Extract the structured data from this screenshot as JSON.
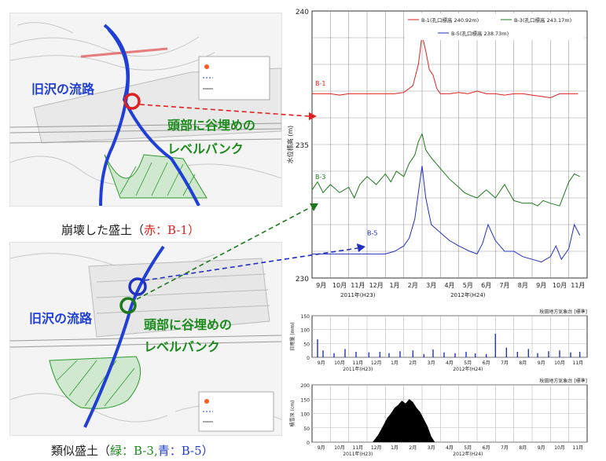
{
  "maps": {
    "top": {
      "annotation_channel": "旧沢の流路",
      "annotation_fill": "頭部に谷埋めの",
      "annotation_fill2": "レベルバンク",
      "caption_prefix": "崩壊した盛土（",
      "caption_color_word": "赤",
      "caption_suffix": "：B-1）"
    },
    "bottom": {
      "annotation_channel": "旧沢の流路",
      "annotation_fill": "頭部に谷埋めの",
      "annotation_fill2": "レベルバンク",
      "caption_prefix": "類似盛土（",
      "caption_green_word": "緑",
      "caption_mid": "：B-3,",
      "caption_blue_word": "青",
      "caption_suffix": "：B-5）"
    },
    "colors": {
      "channel": "#1f3fd6",
      "fill_hatch": "#2a9a2a",
      "b1": "#e02020",
      "b3": "#1c7a1c",
      "b5": "#2030c0"
    }
  },
  "chart_data": [
    {
      "type": "line",
      "ylabel": "水位標高 (m)",
      "ylim": [
        230,
        240
      ],
      "yticks": [
        "230",
        "235",
        "240"
      ],
      "x_months": [
        "9月",
        "10月",
        "11月",
        "12月",
        "1月",
        "2月",
        "3月",
        "4月",
        "5月",
        "6月",
        "7月",
        "8月",
        "9月",
        "10月",
        "11月"
      ],
      "year_labels": [
        "2011年(H23)",
        "2012年(H24)"
      ],
      "legend": [
        "B-1(孔口標高 240.92m)",
        "B-3(孔口標高 243.17m)",
        "B-5(孔口標高 238.73m)"
      ],
      "series": [
        {
          "name": "B-1",
          "color": "#e02020",
          "x": [
            0,
            0.5,
            1,
            1.5,
            2,
            2.5,
            3,
            3.5,
            4,
            4.5,
            5,
            5.5,
            5.8,
            6,
            6.2,
            6.4,
            6.6,
            6.8,
            7,
            7.5,
            8,
            8.5,
            9,
            9.5,
            10,
            10.5,
            11,
            11.5,
            12,
            12.5,
            13,
            13.5,
            14,
            14.5
          ],
          "y": [
            236.9,
            236.9,
            236.9,
            236.85,
            236.9,
            236.9,
            236.9,
            236.9,
            236.9,
            236.9,
            236.95,
            237.2,
            238.0,
            239.1,
            238.5,
            237.8,
            237.6,
            237.1,
            236.9,
            236.9,
            236.95,
            236.9,
            237.0,
            236.9,
            236.9,
            236.85,
            236.9,
            236.9,
            236.85,
            236.8,
            236.75,
            236.9,
            236.9,
            236.9
          ]
        },
        {
          "name": "B-3",
          "color": "#1c7a1c",
          "x": [
            0,
            0.3,
            0.6,
            1,
            1.5,
            2,
            2.3,
            2.6,
            3,
            3.5,
            4,
            4.3,
            4.6,
            5,
            5.3,
            5.6,
            5.8,
            6,
            6.2,
            6.5,
            7,
            7.5,
            8,
            8.3,
            8.6,
            9,
            9.5,
            10,
            10.5,
            11,
            11.5,
            12,
            12.3,
            12.6,
            13,
            13.5,
            14,
            14.3,
            14.6
          ],
          "y": [
            233.3,
            233.6,
            233.2,
            233.5,
            233.2,
            233.4,
            233.0,
            233.5,
            233.8,
            233.5,
            233.9,
            233.6,
            234.0,
            233.8,
            234.3,
            234.6,
            235.1,
            235.4,
            234.8,
            234.5,
            234.1,
            233.7,
            233.4,
            233.2,
            233.1,
            233.0,
            233.3,
            233.0,
            233.5,
            232.9,
            232.8,
            232.8,
            232.7,
            232.9,
            232.8,
            232.7,
            233.6,
            233.9,
            233.8
          ]
        },
        {
          "name": "B-5",
          "color": "#2030c0",
          "x": [
            0,
            0.5,
            1,
            1.5,
            2,
            2.5,
            3,
            3.5,
            4,
            4.5,
            5,
            5.3,
            5.6,
            5.8,
            6,
            6.2,
            6.5,
            7,
            7.5,
            8,
            8.3,
            8.6,
            9,
            9.3,
            9.6,
            10,
            10.5,
            11,
            11.5,
            12,
            12.5,
            13,
            13.3,
            13.6,
            14,
            14.3,
            14.6
          ],
          "y": [
            230.9,
            230.9,
            230.9,
            230.9,
            230.9,
            230.9,
            230.9,
            230.9,
            230.9,
            231.0,
            231.2,
            231.5,
            232.2,
            233.2,
            234.2,
            233.0,
            232.0,
            231.7,
            231.4,
            231.2,
            231.1,
            231.0,
            230.9,
            231.3,
            232.0,
            231.4,
            231.0,
            231.0,
            230.8,
            230.7,
            230.6,
            230.8,
            231.2,
            230.7,
            231.1,
            232.0,
            231.6
          ]
        }
      ],
      "labels": [
        "B-1",
        "B-3",
        "B-5"
      ]
    },
    {
      "type": "bar",
      "title": "秋田地方気象台 [標準]",
      "ylabel": "日雨量 (mm)",
      "ylim": [
        0,
        150
      ],
      "yticks": [
        "0",
        "50",
        "100",
        "150"
      ],
      "color": "#2030c0",
      "x": [
        0.3,
        0.6,
        1.2,
        1.8,
        2.4,
        3.1,
        3.7,
        4.2,
        4.8,
        5.5,
        6.1,
        6.6,
        7.2,
        7.8,
        8.4,
        8.9,
        9.5,
        10.0,
        10.6,
        11.2,
        11.8,
        12.3,
        12.9,
        13.5,
        14.1,
        14.6
      ],
      "values": [
        65,
        25,
        15,
        30,
        20,
        18,
        20,
        15,
        22,
        25,
        12,
        28,
        18,
        15,
        20,
        14,
        12,
        85,
        35,
        20,
        30,
        15,
        22,
        25,
        18,
        20
      ]
    },
    {
      "type": "area",
      "title": "秋田地方気象台 [標準]",
      "ylabel": "積雪深 (cm)",
      "ylim": [
        0,
        200
      ],
      "yticks": [
        "0",
        "50",
        "100",
        "150",
        "200"
      ],
      "color": "#000000",
      "x": [
        3.3,
        3.6,
        3.9,
        4.1,
        4.3,
        4.5,
        4.7,
        4.9,
        5.1,
        5.3,
        5.5,
        5.7,
        5.9,
        6.1,
        6.3,
        6.5,
        6.7
      ],
      "values": [
        0,
        25,
        60,
        85,
        100,
        120,
        130,
        145,
        135,
        150,
        140,
        120,
        105,
        80,
        55,
        20,
        0
      ]
    }
  ]
}
